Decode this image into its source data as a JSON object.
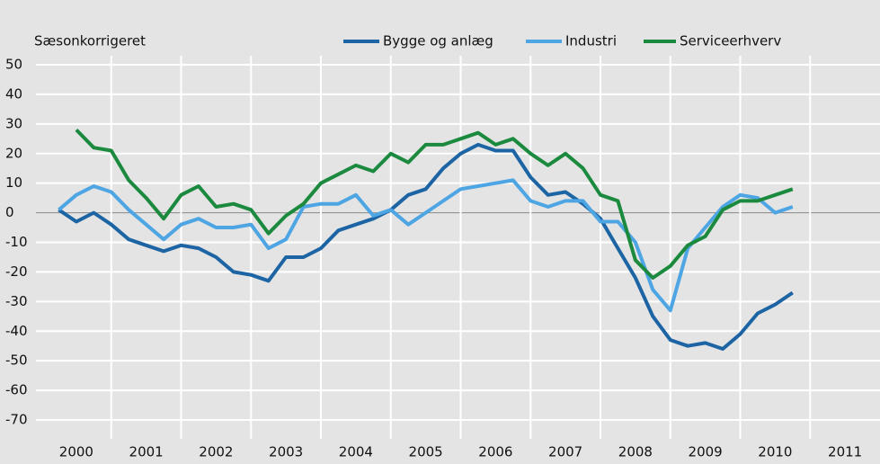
{
  "chart_data": {
    "type": "line",
    "annotation": "Sæsonkorrigeret",
    "x": [
      2000.25,
      2000.5,
      2000.75,
      2001,
      2001.25,
      2001.5,
      2001.75,
      2002,
      2002.25,
      2002.5,
      2002.75,
      2003,
      2003.25,
      2003.5,
      2003.75,
      2004,
      2004.25,
      2004.5,
      2004.75,
      2005,
      2005.25,
      2005.5,
      2005.75,
      2006,
      2006.25,
      2006.5,
      2006.75,
      2007,
      2007.25,
      2007.5,
      2007.75,
      2008,
      2008.25,
      2008.5,
      2008.75,
      2009,
      2009.25,
      2009.5,
      2009.75,
      2010,
      2010.25,
      2010.5,
      2010.75
    ],
    "series": [
      {
        "name": "Bygge og anlæg",
        "color": "#1c64a3",
        "values": [
          1,
          -3,
          0,
          -4,
          -9,
          -11,
          -13,
          -11,
          -12,
          -15,
          -20,
          -21,
          -23,
          -15,
          -15,
          -12,
          -6,
          -4,
          -2,
          1,
          6,
          8,
          15,
          20,
          23,
          21,
          21,
          12,
          6,
          7,
          3,
          -2,
          -12,
          -22,
          -35,
          -43,
          -45,
          -44,
          -46,
          -41,
          -34,
          -31,
          -27
        ]
      },
      {
        "name": "Industri",
        "color": "#4ea5e3",
        "values": [
          1,
          6,
          9,
          7,
          1,
          -4,
          -9,
          -4,
          -2,
          -5,
          -5,
          -4,
          -12,
          -9,
          2,
          3,
          3,
          6,
          -1,
          1,
          -4,
          0,
          4,
          8,
          9,
          10,
          11,
          4,
          2,
          4,
          4,
          -3,
          -3,
          -10,
          -26,
          -33,
          -12,
          -5,
          2,
          6,
          5,
          0,
          2
        ]
      },
      {
        "name": "Serviceerhverv",
        "color": "#1b8a3e",
        "values": [
          null,
          28,
          22,
          21,
          11,
          5,
          -2,
          6,
          9,
          2,
          3,
          1,
          -7,
          -1,
          3,
          10,
          13,
          16,
          14,
          20,
          17,
          23,
          23,
          25,
          27,
          23,
          25,
          20,
          16,
          20,
          15,
          6,
          4,
          -16,
          -22,
          -18,
          -11,
          -8,
          1,
          4,
          4,
          6,
          8
        ]
      }
    ],
    "xlim": [
      2000,
      2012
    ],
    "xticks": [
      2000,
      2001,
      2002,
      2003,
      2004,
      2005,
      2006,
      2007,
      2008,
      2009,
      2010,
      2011
    ],
    "ylim": [
      -70,
      50
    ],
    "yticks": [
      50,
      40,
      30,
      20,
      10,
      0,
      -10,
      -20,
      -30,
      -40,
      -50,
      -60,
      -70
    ],
    "grid": true
  }
}
